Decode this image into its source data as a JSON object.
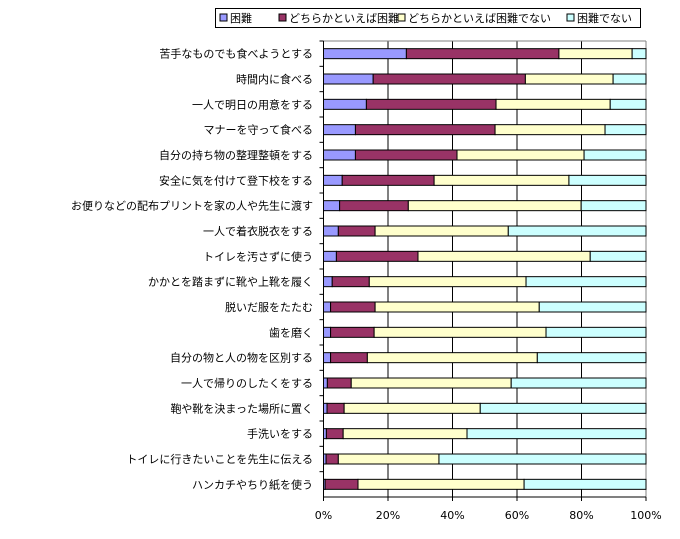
{
  "chart_data": {
    "type": "bar",
    "orientation": "horizontal",
    "stacked": "percent",
    "categories": [
      "苦手なものでも食べようとする",
      "時間内に食べる",
      "一人で明日の用意をする",
      "マナーを守って食べる",
      "自分の持ち物の整理整頓をする",
      "安全に気を付けて登下校をする",
      "お便りなどの配布プリントを家の人や先生に渡す",
      "一人で着衣脱衣をする",
      "トイレを汚さずに使う",
      "かかとを踏まずに靴や上靴を履く",
      "脱いだ服をたたむ",
      "歯を磨く",
      "自分の物と人の物を区別する",
      "一人で帰りのしたくをする",
      "鞄や靴を決まった場所に置く",
      "手洗いをする",
      "トイレに行きたいことを先生に伝える",
      "ハンカチやちり紙を使う"
    ],
    "series": [
      {
        "name": "困難",
        "color": "#9999ff",
        "values": [
          25.7,
          15.4,
          13.3,
          9.9,
          9.9,
          5.8,
          5.0,
          4.6,
          4.0,
          2.7,
          2.2,
          2.2,
          2.2,
          1.2,
          1.1,
          0.9,
          0.8,
          0.5
        ]
      },
      {
        "name": "どちらかといえば困難",
        "color": "#993366",
        "values": [
          47.3,
          47.2,
          40.2,
          43.3,
          31.5,
          28.5,
          21.3,
          11.4,
          25.3,
          11.5,
          13.8,
          13.5,
          11.4,
          7.4,
          5.3,
          5.2,
          3.8,
          10.2
        ]
      },
      {
        "name": "どちらかといえば困難でない",
        "color": "#ffffcc",
        "values": [
          22.7,
          27.2,
          35.4,
          34.1,
          39.4,
          41.8,
          53.6,
          41.3,
          53.4,
          48.6,
          50.9,
          53.3,
          52.7,
          49.6,
          42.2,
          38.4,
          31.2,
          51.5
        ]
      },
      {
        "name": "困難でない",
        "color": "#ccffff",
        "values": [
          4.3,
          10.2,
          11.1,
          12.7,
          19.2,
          23.9,
          20.1,
          42.7,
          17.3,
          37.2,
          33.1,
          31.0,
          33.7,
          41.8,
          51.4,
          55.5,
          64.2,
          37.8
        ]
      }
    ],
    "xticks": [
      "0%",
      "20%",
      "40%",
      "60%",
      "80%",
      "100%"
    ],
    "xlim": [
      0,
      100
    ],
    "title": "",
    "xlabel": "",
    "ylabel": "",
    "grid": "vertical",
    "legend_position": "top"
  }
}
